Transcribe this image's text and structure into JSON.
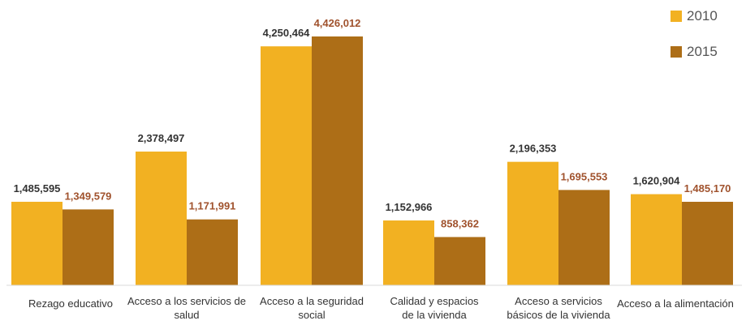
{
  "chart_data": {
    "type": "bar",
    "categories": [
      "Rezago educativo",
      "Acceso a los servicios de salud",
      "Acceso a la seguridad social",
      "Calidad y espacios de la vivienda",
      "Acceso a servicios básicos de la vivienda",
      "Acceso a la alimentación"
    ],
    "category_lines": [
      [
        "Rezago educativo"
      ],
      [
        "Acceso a los servicios de",
        "salud"
      ],
      [
        "Acceso a la seguridad",
        "social"
      ],
      [
        "Calidad y espacios",
        "de la vivienda"
      ],
      [
        "Acceso a servicios",
        "básicos de la vivienda"
      ],
      [
        "Acceso a la alimentación"
      ]
    ],
    "series": [
      {
        "name": "2010",
        "color": "#F2B122",
        "label_color": "#333333",
        "values": [
          1485595,
          2378497,
          4250464,
          1152966,
          2196353,
          1620904
        ],
        "labels": [
          "1,485,595",
          "2,378,497",
          "4,250,464",
          "1,152,966",
          "2,196,353",
          "1,620,904"
        ]
      },
      {
        "name": "2015",
        "color": "#AD6E17",
        "label_color": "#A0522D",
        "values": [
          1349579,
          1171991,
          4426012,
          858362,
          1695553,
          1485170
        ],
        "labels": [
          "1,349,579",
          "1,171,991",
          "4,426,012",
          "858,362",
          "1,695,553",
          "1,485,170"
        ]
      }
    ],
    "ylim": [
      0,
      4426012
    ],
    "legend_position": "top-right",
    "grid": false
  }
}
